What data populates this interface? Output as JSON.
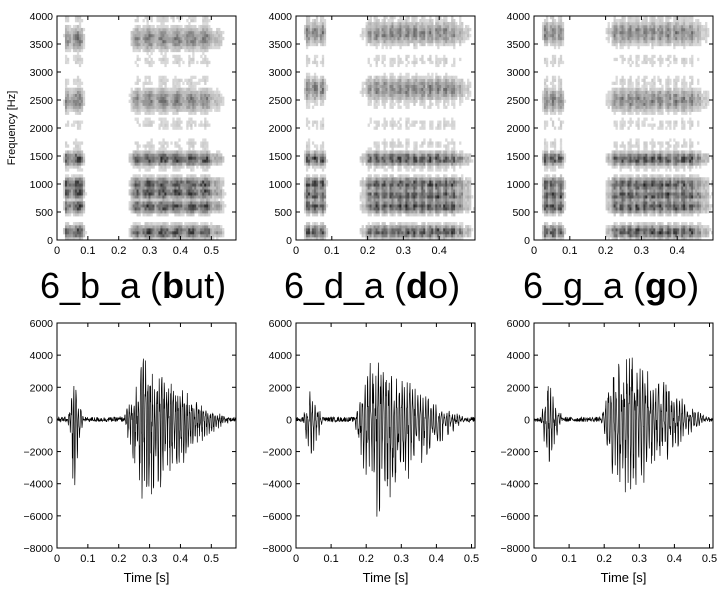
{
  "chart_data": [
    {
      "type": "heatmap",
      "title": "",
      "xlabel": "",
      "ylabel": "Frequency [Hz]",
      "xlim": [
        0,
        0.58
      ],
      "ylim": [
        0,
        4000
      ],
      "xticks": [
        0,
        0.1,
        0.2,
        0.3,
        0.4,
        0.5
      ],
      "xticklabels": [
        "0",
        "0.1",
        "0.2",
        "0.3",
        "0.4",
        "0.5"
      ],
      "yticks": [
        0,
        500,
        1000,
        1500,
        2000,
        2500,
        3000,
        3500,
        4000
      ],
      "yticklabels": [
        "0",
        "500",
        "1000",
        "1500",
        "2000",
        "2500",
        "3000",
        "3500",
        "4000"
      ],
      "colormap": "gray_r",
      "segments": [
        [
          0.02,
          0.095
        ],
        [
          0.22,
          0.55
        ]
      ],
      "formants": [
        150,
        600,
        850,
        1000,
        1450,
        2500,
        3600
      ],
      "pulse_spacing_s": 0.0075
    },
    {
      "type": "heatmap",
      "title": "",
      "xlabel": "",
      "ylabel": "",
      "xlim": [
        0,
        0.5
      ],
      "ylim": [
        0,
        4000
      ],
      "xticks": [
        0,
        0.1,
        0.2,
        0.3,
        0.4
      ],
      "xticklabels": [
        "0",
        "0.1",
        "0.2",
        "0.3",
        "0.4"
      ],
      "yticks": [
        0,
        500,
        1000,
        1500,
        2000,
        2500,
        3000,
        3500,
        4000
      ],
      "yticklabels": [
        "0",
        "500",
        "1000",
        "1500",
        "2000",
        "2500",
        "3000",
        "3500",
        "4000"
      ],
      "colormap": "gray_r",
      "segments": [
        [
          0.02,
          0.09
        ],
        [
          0.17,
          0.5
        ]
      ],
      "formants": [
        150,
        600,
        800,
        1000,
        1450,
        2700,
        3700
      ],
      "pulse_spacing_s": 0.0075
    },
    {
      "type": "heatmap",
      "title": "",
      "xlabel": "",
      "ylabel": "",
      "xlim": [
        0,
        0.5
      ],
      "ylim": [
        0,
        4000
      ],
      "xticks": [
        0,
        0.1,
        0.2,
        0.3,
        0.4
      ],
      "xticklabels": [
        "0",
        "0.1",
        "0.2",
        "0.3",
        "0.4"
      ],
      "yticks": [
        0,
        500,
        1000,
        1500,
        2000,
        2500,
        3000,
        3500,
        4000
      ],
      "yticklabels": [
        "0",
        "500",
        "1000",
        "1500",
        "2000",
        "2500",
        "3000",
        "3500",
        "4000"
      ],
      "colormap": "gray_r",
      "segments": [
        [
          0.02,
          0.09
        ],
        [
          0.19,
          0.5
        ]
      ],
      "formants": [
        150,
        600,
        800,
        1000,
        1450,
        2500,
        3700
      ],
      "pulse_spacing_s": 0.0075
    },
    {
      "type": "line",
      "title": "",
      "xlabel": "Time [s]",
      "ylabel": "",
      "xlim": [
        0,
        0.58
      ],
      "ylim": [
        -8000,
        6000
      ],
      "xticks": [
        0,
        0.1,
        0.2,
        0.3,
        0.4,
        0.5
      ],
      "xticklabels": [
        "0",
        "0.1",
        "0.2",
        "0.3",
        "0.4",
        "0.5"
      ],
      "yticks": [
        -8000,
        -6000,
        -4000,
        -2000,
        0,
        2000,
        4000,
        6000
      ],
      "yticklabels": [
        "−8000",
        "−6000",
        "−4000",
        "−2000",
        "0",
        "2000",
        "4000",
        "6000"
      ],
      "bursts": [
        {
          "start": 0.035,
          "end": 0.09,
          "peak_s": 0.055,
          "pos_amp": 2800,
          "neg_amp": 5000
        },
        {
          "start": 0.215,
          "end": 0.565,
          "peak_s": 0.28,
          "pos_amp": 4200,
          "neg_amp": 6200
        }
      ]
    },
    {
      "type": "line",
      "title": "",
      "xlabel": "Time [s]",
      "ylabel": "",
      "xlim": [
        0,
        0.51
      ],
      "ylim": [
        -8000,
        6000
      ],
      "xticks": [
        0,
        0.1,
        0.2,
        0.3,
        0.4,
        0.5
      ],
      "xticklabels": [
        "0",
        "0.1",
        "0.2",
        "0.3",
        "0.4",
        "0.5"
      ],
      "yticks": [
        -8000,
        -6000,
        -4000,
        -2000,
        0,
        2000,
        4000,
        6000
      ],
      "yticklabels": [
        "−8000",
        "−6000",
        "−4000",
        "−2000",
        "0",
        "2000",
        "4000",
        "6000"
      ],
      "bursts": [
        {
          "start": 0.02,
          "end": 0.08,
          "peak_s": 0.04,
          "pos_amp": 2400,
          "neg_amp": 3800
        },
        {
          "start": 0.165,
          "end": 0.5,
          "peak_s": 0.22,
          "pos_amp": 4300,
          "neg_amp": 6800
        }
      ]
    },
    {
      "type": "line",
      "title": "",
      "xlabel": "Time [s]",
      "ylabel": "",
      "xlim": [
        0,
        0.51
      ],
      "ylim": [
        -8000,
        6000
      ],
      "xticks": [
        0,
        0.1,
        0.2,
        0.3,
        0.4,
        0.5
      ],
      "xticklabels": [
        "0",
        "0.1",
        "0.2",
        "0.3",
        "0.4",
        "0.5"
      ],
      "yticks": [
        -8000,
        -6000,
        -4000,
        -2000,
        0,
        2000,
        4000,
        6000
      ],
      "yticklabels": [
        "−8000",
        "−6000",
        "−4000",
        "−2000",
        "0",
        "2000",
        "4000",
        "6000"
      ],
      "bursts": [
        {
          "start": 0.02,
          "end": 0.085,
          "peak_s": 0.04,
          "pos_amp": 3200,
          "neg_amp": 3600
        },
        {
          "start": 0.19,
          "end": 0.51,
          "peak_s": 0.25,
          "pos_amp": 5500,
          "neg_amp": 6100
        }
      ]
    }
  ],
  "words": [
    {
      "prefix": "6_b_a (",
      "bold": "b",
      "suffix": "ut)"
    },
    {
      "prefix": "6_d_a (",
      "bold": "d",
      "suffix": "o)"
    },
    {
      "prefix": "6_g_a (",
      "bold": "g",
      "suffix": "o)"
    }
  ]
}
